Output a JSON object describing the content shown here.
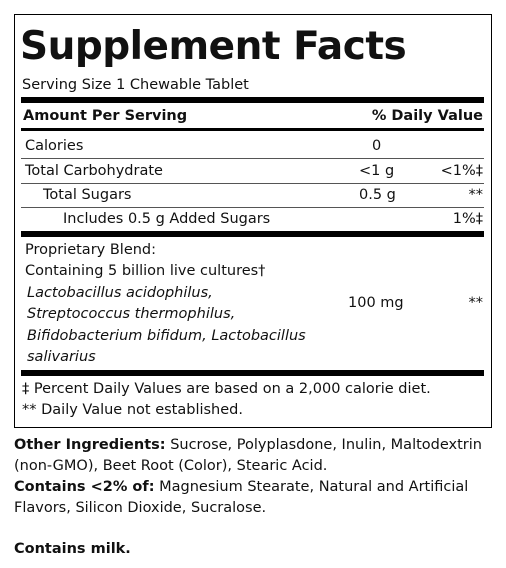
{
  "title": "Supplement Facts",
  "serving_size": "Serving Size 1 Chewable Tablet",
  "header": {
    "amount": "Amount Per Serving",
    "dv": "% Daily Value"
  },
  "rows": [
    {
      "name": "Calories",
      "amount": "0"
    },
    {
      "name": "Total Carbohydrate",
      "amount": "<1 g",
      "dv": "<1%‡"
    },
    {
      "name": "Total Sugars",
      "amount": "0.5 g",
      "dv": "**"
    },
    {
      "name": "Includes 0.5 g Added Sugars",
      "dv": "1%‡"
    }
  ],
  "blend": {
    "name": "Proprietary Blend:",
    "cultures": "Containing 5 billion live cultures†",
    "strains": [
      "Lactobacillus acidophilus,",
      "Streptococcus thermophilus,",
      "Bifidobacterium bifidum, Lactobacillus",
      "salivarius"
    ],
    "amount": "100 mg",
    "dv": "**"
  },
  "footnotes": [
    "‡ Percent Daily Values are based on a 2,000 calorie diet.",
    "** Daily Value not established."
  ],
  "other_ingredients": {
    "label": "Other Ingredients:",
    "text": "Sucrose, Polyplasdone, Inulin, Maltodextrin (non-GMO), Beet Root (Color), Stearic Acid."
  },
  "contains_less": {
    "label": "Contains <2% of:",
    "text": "Magnesium Stearate, Natural and Artificial Flavors, Silicon Dioxide, Sucralose."
  },
  "allergen": "Contains milk."
}
